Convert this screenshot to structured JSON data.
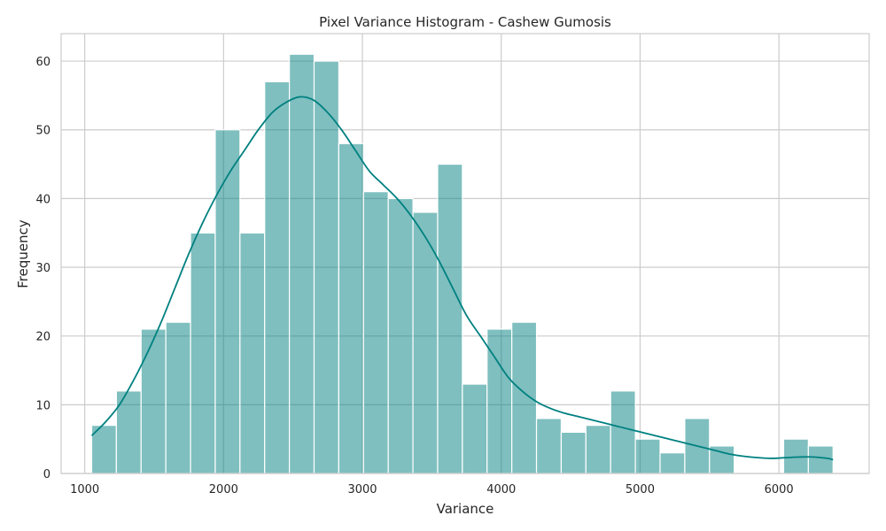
{
  "chart_data": {
    "type": "bar",
    "title": "Pixel Variance Histogram - Cashew Gumosis",
    "xlabel": "Variance",
    "ylabel": "Frequency",
    "xlim": [
      830,
      6650
    ],
    "ylim": [
      0,
      64
    ],
    "xticks": [
      1000,
      2000,
      3000,
      4000,
      5000,
      6000
    ],
    "yticks": [
      0,
      10,
      20,
      30,
      40,
      50,
      60
    ],
    "grid": true,
    "colors": {
      "bar": "#008080",
      "kde": "#008080",
      "grid": "#cccccc"
    },
    "bin_start": 1050,
    "bin_width": 178,
    "values": [
      7,
      12,
      21,
      22,
      35,
      50,
      35,
      57,
      61,
      60,
      48,
      41,
      40,
      38,
      45,
      13,
      21,
      22,
      8,
      6,
      7,
      12,
      5,
      3,
      8,
      4,
      0,
      0,
      5,
      4
    ],
    "kde_curve": {
      "x": [
        1050,
        1150,
        1250,
        1350,
        1450,
        1550,
        1650,
        1750,
        1850,
        1950,
        2050,
        2150,
        2250,
        2350,
        2450,
        2550,
        2650,
        2750,
        2850,
        2950,
        3050,
        3150,
        3250,
        3350,
        3450,
        3550,
        3650,
        3750,
        3850,
        3950,
        4050,
        4150,
        4250,
        4350,
        4450,
        4550,
        4650,
        4750,
        4850,
        4950,
        5050,
        5150,
        5250,
        5350,
        5450,
        5550,
        5650,
        5750,
        5850,
        5950,
        6050,
        6150,
        6250,
        6350,
        6390
      ],
      "y": [
        5.5,
        7.5,
        10,
        13.5,
        17.5,
        22,
        27,
        32,
        36.5,
        40.5,
        44,
        47,
        50,
        52.5,
        54,
        54.8,
        54.3,
        52.5,
        50,
        47,
        44,
        42,
        40,
        37.5,
        34.5,
        31,
        27,
        23,
        20,
        17,
        14,
        12,
        10.5,
        9.5,
        8.8,
        8.3,
        7.8,
        7.3,
        6.8,
        6.3,
        5.8,
        5.3,
        4.8,
        4.3,
        3.8,
        3.3,
        2.8,
        2.5,
        2.3,
        2.2,
        2.3,
        2.4,
        2.4,
        2.2,
        2.0
      ]
    }
  }
}
